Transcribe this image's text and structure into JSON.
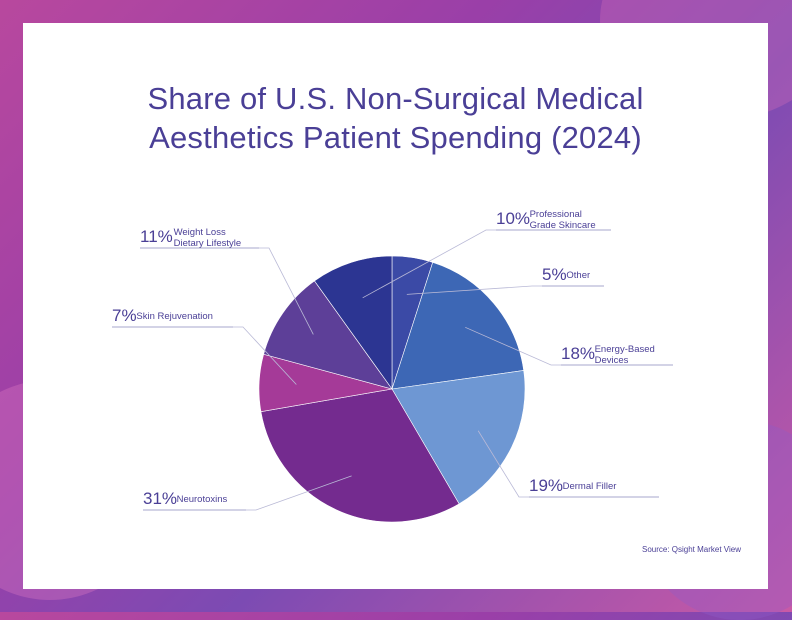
{
  "title_line1": "Share of U.S. Non-Surgical Medical",
  "title_line2": "Aesthetics Patient Spending (2024)",
  "source": "Source: Qsight Market View",
  "colors": {
    "text": "#4a3f96",
    "leader": "#b9b9d6"
  },
  "chart_data": {
    "type": "pie",
    "title": "Share of U.S. Non-Surgical Medical Aesthetics Patient Spending (2024)",
    "start": "12 o'clock, clockwise",
    "slices": [
      {
        "key": "other",
        "pct": "5%",
        "value": 5,
        "lines": [
          "Other"
        ],
        "color": "#3b4aa6"
      },
      {
        "key": "energy",
        "pct": "18%",
        "value": 18,
        "lines": [
          "Energy-Based",
          "Devices"
        ],
        "color": "#3d67b5"
      },
      {
        "key": "dermal",
        "pct": "19%",
        "value": 19,
        "lines": [
          "Dermal Filler"
        ],
        "color": "#6e97d3"
      },
      {
        "key": "neuro",
        "pct": "31%",
        "value": 31,
        "lines": [
          "Neurotoxins"
        ],
        "color": "#742b8f"
      },
      {
        "key": "skinrej",
        "pct": "7%",
        "value": 7,
        "lines": [
          "Skin Rejuvenation"
        ],
        "color": "#a53a98"
      },
      {
        "key": "weight",
        "pct": "11%",
        "value": 11,
        "lines": [
          "Weight Loss",
          "Dietary Lifestyle"
        ],
        "color": "#5d3f98"
      },
      {
        "key": "skincare",
        "pct": "10%",
        "value": 10,
        "lines": [
          "Professional",
          "Grade Skincare"
        ],
        "color": "#2c3592"
      }
    ]
  }
}
